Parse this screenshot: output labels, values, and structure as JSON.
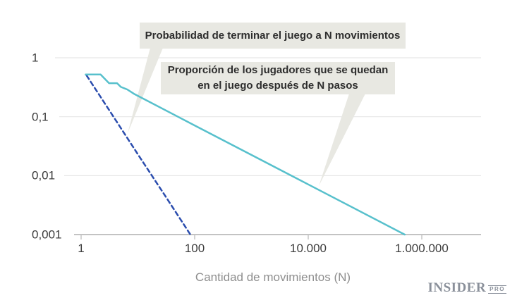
{
  "annotations": {
    "callout1": {
      "text": "Probabilidad de terminar el juego a N movimientos"
    },
    "callout2": {
      "line1": "Proporción de los jugadores que se quedan",
      "line2": "en el juego después de N pasos"
    }
  },
  "axis": {
    "xlabel": "Cantidad de movimientos (N)"
  },
  "logo": {
    "name": "INSIDER",
    "suffix": "PRO"
  },
  "colors": {
    "ending_line": "#2b4dae",
    "staying_line": "#57c0cc",
    "callout_bg": "#e8e8e2",
    "grid": "#e7e7e7",
    "axis_line": "#c3c3c3",
    "tick_mark": "#b8b8b8",
    "tick_text": "#3d3d3d",
    "muted_text": "#8e8e8e",
    "logo": "#8a909a"
  },
  "chart_data": {
    "type": "line",
    "xscale": "log",
    "yscale": "log",
    "xlabel": "Cantidad de movimientos (N)",
    "ylabel": "",
    "xlim": [
      1,
      12000000
    ],
    "ylim": [
      0.001,
      1
    ],
    "grid": "horizontal-only",
    "legend_position": "callout-annotations",
    "xticks": [
      {
        "value": 1,
        "label": "1"
      },
      {
        "value": 100,
        "label": "100"
      },
      {
        "value": 10000,
        "label": "10.000"
      },
      {
        "value": 1000000,
        "label": "1.000.000"
      }
    ],
    "yticks": [
      {
        "value": 1,
        "label": "1"
      },
      {
        "value": 0.1,
        "label": "0,1"
      },
      {
        "value": 0.01,
        "label": "0,01"
      },
      {
        "value": 0.001,
        "label": "0,001"
      }
    ],
    "series": [
      {
        "name": "Probabilidad de terminar el juego a N movimientos",
        "style": "dashed",
        "color": "#2b4dae",
        "slope_note": "power law ~ N^-1.5",
        "points": [
          [
            1.25,
            0.5
          ],
          [
            3,
            0.137
          ],
          [
            10,
            0.023
          ],
          [
            30,
            0.0046
          ],
          [
            84,
            0.001
          ]
        ]
      },
      {
        "name": "Proporción de los jugadores que se quedan en el juego después de N pasos",
        "style": "solid",
        "color": "#57c0cc",
        "slope_note": "power law ~ N^-0.5",
        "points": [
          [
            1.2,
            0.52
          ],
          [
            2.2,
            0.52
          ],
          [
            3.1,
            0.37
          ],
          [
            4.3,
            0.37
          ],
          [
            5,
            0.32
          ],
          [
            6.5,
            0.29
          ],
          [
            8.5,
            0.245
          ],
          [
            100,
            0.071
          ],
          [
            10000,
            0.0071
          ],
          [
            500000,
            0.001
          ]
        ]
      }
    ]
  }
}
